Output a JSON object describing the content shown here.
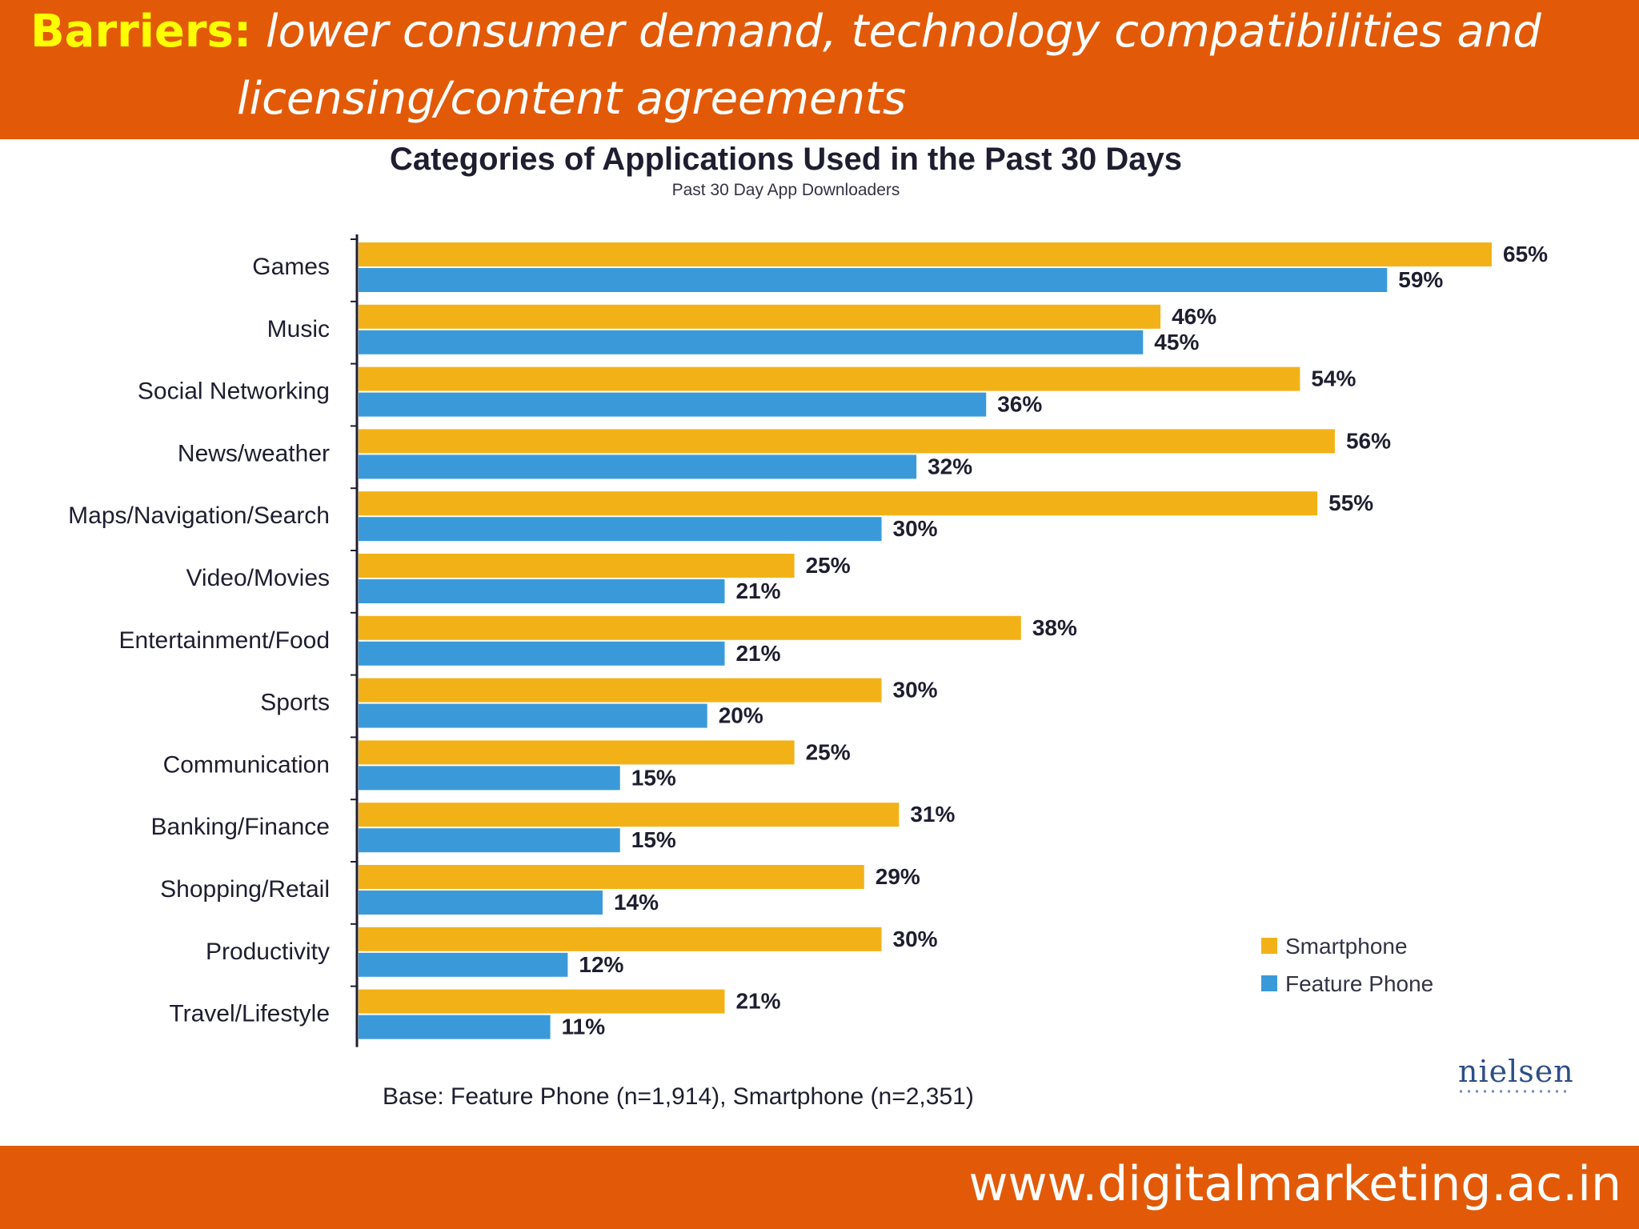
{
  "header": {
    "barriers_label": "Barriers:",
    "barriers_text_line1": "lower consumer demand, technology compatibilities and",
    "barriers_text_line2": "licensing/content agreements"
  },
  "chart_data": {
    "type": "bar",
    "orientation": "horizontal",
    "title": "Categories of Applications Used in the Past 30 Days",
    "subtitle": "Past 30 Day App Downloaders",
    "categories": [
      "Games",
      "Music",
      "Social Networking",
      "News/weather",
      "Maps/Navigation/Search",
      "Video/Movies",
      "Entertainment/Food",
      "Sports",
      "Communication",
      "Banking/Finance",
      "Shopping/Retail",
      "Productivity",
      "Travel/Lifestyle"
    ],
    "series": [
      {
        "name": "Smartphone",
        "color": "#f2b217",
        "values": [
          65,
          46,
          54,
          56,
          55,
          25,
          38,
          30,
          25,
          31,
          29,
          30,
          21
        ],
        "labels": [
          "65%",
          "46%",
          "54%",
          "56%",
          "55%",
          "25%",
          "38%",
          "30%",
          "25%",
          "31%",
          "29%",
          "30%",
          "21%"
        ]
      },
      {
        "name": "Feature Phone",
        "color": "#3a9ad9",
        "values": [
          59,
          45,
          36,
          32,
          30,
          21,
          21,
          20,
          15,
          15,
          14,
          12,
          11
        ],
        "labels": [
          "59%",
          "45%",
          "36%",
          "32%",
          "30%",
          "21%",
          "21%",
          "20%",
          "15%",
          "15%",
          "14%",
          "12%",
          "11%"
        ]
      }
    ],
    "xlim": [
      0,
      65
    ],
    "legend_position": "bottom-right",
    "footnote": "Base: Feature Phone (n=1,914), Smartphone (n=2,351)",
    "source_logo": "nielsen",
    "grid": false
  },
  "footer": {
    "url": "www.digitalmarketing.ac.in"
  }
}
